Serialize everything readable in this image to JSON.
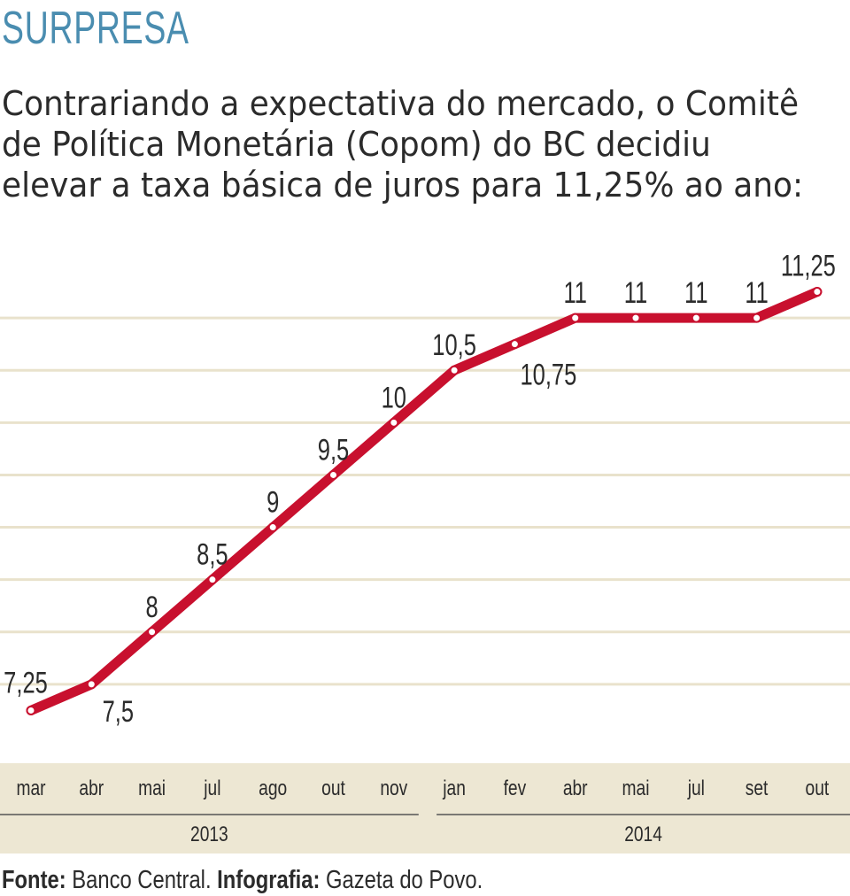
{
  "header": {
    "title": "SURPRESA",
    "subtitle_lines": [
      "Contrariando a expectativa do mercado, o Comitê",
      "de Política Monetária (Copom) do BC decidiu",
      "elevar a taxa básica de juros para 11,25% ao ano:"
    ]
  },
  "chart_data": {
    "type": "line",
    "title": "SURPRESA",
    "x": [
      "mar",
      "abr",
      "mai",
      "jul",
      "ago",
      "out",
      "nov",
      "jan",
      "fev",
      "abr",
      "mai",
      "jul",
      "set",
      "out"
    ],
    "year_groups": [
      {
        "label": "2013",
        "months": [
          "mar",
          "abr",
          "mai",
          "jul",
          "ago",
          "out",
          "nov"
        ]
      },
      {
        "label": "2014",
        "months": [
          "jan",
          "fev",
          "abr",
          "mai",
          "jul",
          "set",
          "out"
        ]
      }
    ],
    "series": [
      {
        "values": [
          7.25,
          7.5,
          8,
          8.5,
          9,
          9.5,
          10,
          10.5,
          10.75,
          11,
          11,
          11,
          11,
          11.25
        ],
        "labels": [
          "7,25",
          "7,5",
          "8",
          "8,5",
          "9",
          "9,5",
          "10",
          "10,5",
          "10,75",
          "11",
          "11",
          "11",
          "11",
          "11,25"
        ],
        "label_below": [
          false,
          true,
          false,
          false,
          false,
          false,
          false,
          false,
          true,
          false,
          false,
          false,
          false,
          false
        ],
        "color": "#c8102e"
      }
    ],
    "ylim": [
      7.0,
      11.5
    ],
    "gridlines": [
      7.5,
      8,
      8.5,
      9,
      9.5,
      10,
      10.5,
      11
    ],
    "grid": true,
    "colors": {
      "line": "#c8102e",
      "marker_fill": "#ffffff",
      "grid": "#e9e2cc",
      "axis_band": "#ede7d3",
      "title": "#4a8db0"
    }
  },
  "footer": {
    "source_label": "Fonte:",
    "source_value": "Banco Central.",
    "credit_label": "Infografia:",
    "credit_value": "Gazeta do Povo."
  }
}
